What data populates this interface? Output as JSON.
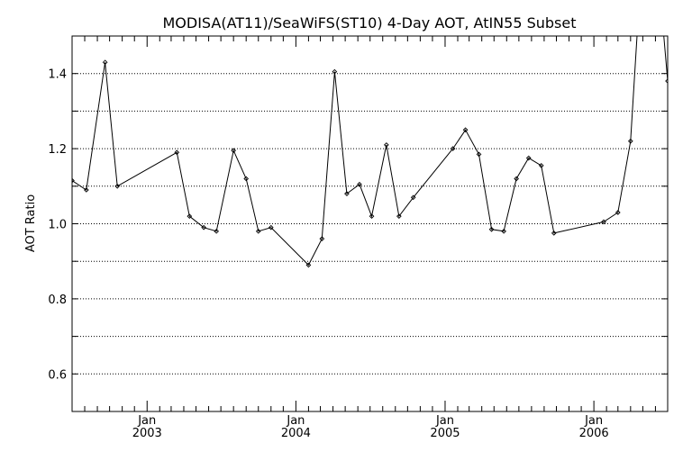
{
  "chart_data": {
    "type": "line",
    "title": "MODISA(AT11)/SeaWiFS(ST10) 4-Day AOT, AtIN55 Subset",
    "ylabel": "AOT Ratio",
    "xlabel": "",
    "xlim": [
      "2002-07-01",
      "2006-07-01"
    ],
    "ylim": [
      0.5,
      1.5
    ],
    "y_ticks": [
      {
        "value": 0.6,
        "label": "0.6"
      },
      {
        "value": 0.8,
        "label": "0.8"
      },
      {
        "value": 1.0,
        "label": "1.0"
      },
      {
        "value": 1.2,
        "label": "1.2"
      },
      {
        "value": 1.4,
        "label": "1.4"
      }
    ],
    "x_ticks": [
      {
        "date": "2003-01-01",
        "month": "Jan",
        "year": "2003"
      },
      {
        "date": "2004-01-01",
        "month": "Jan",
        "year": "2004"
      },
      {
        "date": "2005-01-01",
        "month": "Jan",
        "year": "2005"
      },
      {
        "date": "2006-01-01",
        "month": "Jan",
        "year": "2006"
      }
    ],
    "grid": "horizontal dotted at every 0.1",
    "color": "#000000",
    "points": [
      {
        "x": "2002-07-01",
        "y": 1.115
      },
      {
        "x": "2002-08-05",
        "y": 1.09
      },
      {
        "x": "2002-09-20",
        "y": 1.43
      },
      {
        "x": "2002-10-20",
        "y": 1.1
      },
      {
        "x": "2003-03-15",
        "y": 1.19
      },
      {
        "x": "2003-04-15",
        "y": 1.02
      },
      {
        "x": "2003-05-20",
        "y": 0.99
      },
      {
        "x": "2003-06-20",
        "y": 0.98
      },
      {
        "x": "2003-08-01",
        "y": 1.195
      },
      {
        "x": "2003-09-01",
        "y": 1.12
      },
      {
        "x": "2003-10-01",
        "y": 0.98
      },
      {
        "x": "2003-11-01",
        "y": 0.99
      },
      {
        "x": "2004-02-01",
        "y": 0.89
      },
      {
        "x": "2004-03-05",
        "y": 0.96
      },
      {
        "x": "2004-04-05",
        "y": 1.405
      },
      {
        "x": "2004-05-05",
        "y": 1.08
      },
      {
        "x": "2004-06-05",
        "y": 1.105
      },
      {
        "x": "2004-07-05",
        "y": 1.02
      },
      {
        "x": "2004-08-10",
        "y": 1.21
      },
      {
        "x": "2004-09-10",
        "y": 1.02
      },
      {
        "x": "2004-10-15",
        "y": 1.07
      },
      {
        "x": "2005-01-20",
        "y": 1.2
      },
      {
        "x": "2005-02-20",
        "y": 1.25
      },
      {
        "x": "2005-03-25",
        "y": 1.185
      },
      {
        "x": "2005-04-25",
        "y": 0.985
      },
      {
        "x": "2005-05-25",
        "y": 0.98
      },
      {
        "x": "2005-06-25",
        "y": 1.12
      },
      {
        "x": "2005-07-25",
        "y": 1.175
      },
      {
        "x": "2005-08-25",
        "y": 1.155
      },
      {
        "x": "2005-09-25",
        "y": 0.975
      },
      {
        "x": "2006-01-25",
        "y": 1.005
      },
      {
        "x": "2006-03-01",
        "y": 1.03
      },
      {
        "x": "2006-04-01",
        "y": 1.22
      },
      {
        "x": "2006-05-01",
        "y": 1.75
      },
      {
        "x": "2006-06-20",
        "y": 1.52
      },
      {
        "x": "2006-07-01",
        "y": 1.38
      }
    ]
  }
}
